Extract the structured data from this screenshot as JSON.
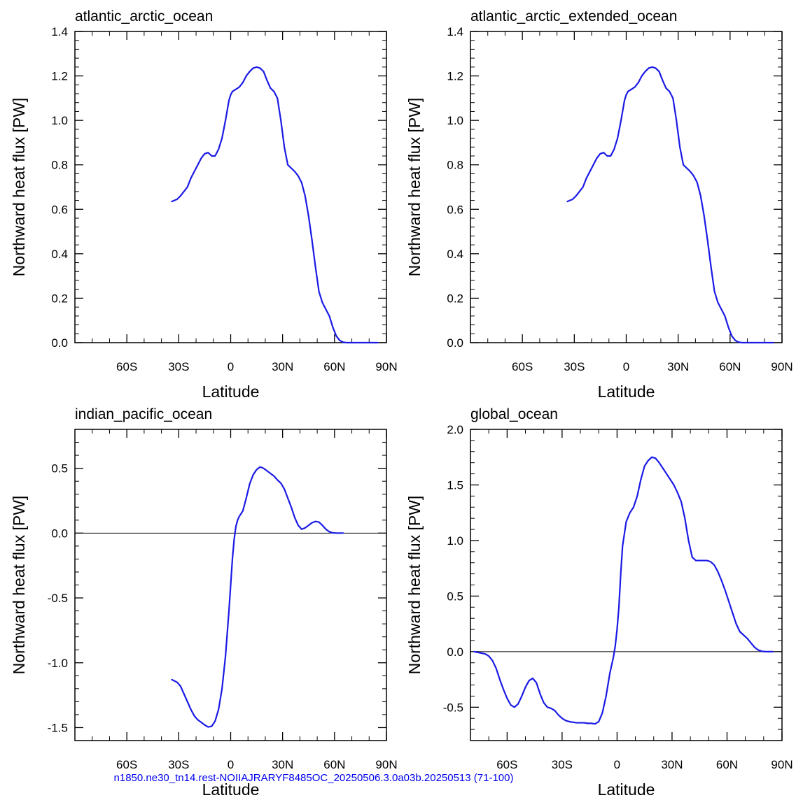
{
  "footer": {
    "text": "n1850.ne30_tn14.rest-NOIIAJRARYF8485OC_20250506.3.0a03b.20250513 (71-100)",
    "color": "#0000ee"
  },
  "line_color": "#1a1ae6",
  "chart_data": [
    {
      "type": "line",
      "title": "atlantic_arctic_ocean",
      "xlabel": "Latitude",
      "ylabel": "Northward heat flux [PW]",
      "xlim": [
        -90,
        90
      ],
      "ylim": [
        0,
        1.4
      ],
      "xticks": [
        -60,
        -30,
        0,
        30,
        60,
        90
      ],
      "xticklabels": [
        "60S",
        "30S",
        "0",
        "30N",
        "60N",
        "90N"
      ],
      "yticks": [
        0,
        0.2,
        0.4,
        0.6,
        0.8,
        1.0,
        1.2,
        1.4
      ],
      "yticklabels": [
        "0.0",
        "0.2",
        "0.4",
        "0.6",
        "0.8",
        "1.0",
        "1.2",
        "1.4"
      ],
      "zero_line": false,
      "x": [
        -34,
        -31,
        -29,
        -27,
        -25,
        -23,
        -21,
        -19,
        -17,
        -15,
        -13,
        -11,
        -9,
        -7,
        -5,
        -3,
        -1,
        0,
        1,
        3,
        5,
        7,
        9,
        11,
        13,
        15,
        17,
        19,
        21,
        23,
        25,
        27,
        29,
        31,
        33,
        35,
        37,
        39,
        41,
        43,
        45,
        47,
        49,
        51,
        53,
        55,
        57,
        59,
        61,
        63,
        65,
        67,
        69,
        71,
        73,
        75,
        77,
        79,
        81,
        83,
        85
      ],
      "y": [
        0.635,
        0.645,
        0.66,
        0.68,
        0.7,
        0.74,
        0.77,
        0.8,
        0.83,
        0.85,
        0.855,
        0.84,
        0.84,
        0.87,
        0.92,
        1.0,
        1.09,
        1.115,
        1.13,
        1.14,
        1.15,
        1.17,
        1.2,
        1.22,
        1.235,
        1.24,
        1.235,
        1.22,
        1.18,
        1.145,
        1.13,
        1.1,
        1.0,
        0.88,
        0.8,
        0.785,
        0.77,
        0.75,
        0.72,
        0.66,
        0.57,
        0.46,
        0.34,
        0.23,
        0.18,
        0.15,
        0.12,
        0.07,
        0.03,
        0.01,
        0.002,
        0.0,
        0.0,
        0.0,
        0.0,
        0.0,
        0.0,
        0.0,
        0.0,
        0.0,
        0.0
      ]
    },
    {
      "type": "line",
      "title": "atlantic_arctic_extended_ocean",
      "xlabel": "Latitude",
      "ylabel": "Northward heat flux [PW]",
      "xlim": [
        -90,
        90
      ],
      "ylim": [
        0,
        1.4
      ],
      "xticks": [
        -60,
        -30,
        0,
        30,
        60,
        90
      ],
      "xticklabels": [
        "60S",
        "30S",
        "0",
        "30N",
        "60N",
        "90N"
      ],
      "yticks": [
        0,
        0.2,
        0.4,
        0.6,
        0.8,
        1.0,
        1.2,
        1.4
      ],
      "yticklabels": [
        "0.0",
        "0.2",
        "0.4",
        "0.6",
        "0.8",
        "1.0",
        "1.2",
        "1.4"
      ],
      "zero_line": false,
      "x": [
        -34,
        -31,
        -29,
        -27,
        -25,
        -23,
        -21,
        -19,
        -17,
        -15,
        -13,
        -11,
        -9,
        -7,
        -5,
        -3,
        -1,
        0,
        1,
        3,
        5,
        7,
        9,
        11,
        13,
        15,
        17,
        19,
        21,
        23,
        25,
        27,
        29,
        31,
        33,
        35,
        37,
        39,
        41,
        43,
        45,
        47,
        49,
        51,
        53,
        55,
        57,
        59,
        61,
        63,
        65,
        67,
        69,
        71,
        73,
        75,
        77,
        79,
        81,
        83,
        85
      ],
      "y": [
        0.635,
        0.645,
        0.66,
        0.68,
        0.7,
        0.74,
        0.77,
        0.8,
        0.83,
        0.85,
        0.855,
        0.84,
        0.84,
        0.87,
        0.92,
        1.0,
        1.09,
        1.115,
        1.13,
        1.14,
        1.15,
        1.17,
        1.2,
        1.22,
        1.235,
        1.24,
        1.235,
        1.22,
        1.18,
        1.145,
        1.13,
        1.1,
        1.0,
        0.88,
        0.8,
        0.785,
        0.77,
        0.75,
        0.72,
        0.66,
        0.57,
        0.46,
        0.34,
        0.23,
        0.18,
        0.15,
        0.12,
        0.07,
        0.03,
        0.01,
        0.002,
        0.0,
        0.0,
        0.0,
        0.0,
        0.0,
        0.0,
        0.0,
        0.0,
        0.0,
        0.0
      ]
    },
    {
      "type": "line",
      "title": "indian_pacific_ocean",
      "xlabel": "Latitude",
      "ylabel": "Northward heat flux [PW]",
      "xlim": [
        -90,
        90
      ],
      "ylim": [
        -1.6,
        0.8
      ],
      "xticks": [
        -60,
        -30,
        0,
        30,
        60,
        90
      ],
      "xticklabels": [
        "60S",
        "30S",
        "0",
        "30N",
        "60N",
        "90N"
      ],
      "yticks": [
        -1.5,
        -1.0,
        -0.5,
        0.0,
        0.5
      ],
      "yticklabels": [
        "-1.5",
        "-1.0",
        "-0.5",
        "0.0",
        "0.5"
      ],
      "zero_line": true,
      "x": [
        -34,
        -31,
        -29,
        -27,
        -25,
        -23,
        -21,
        -19,
        -17,
        -15,
        -13,
        -11,
        -9,
        -7,
        -5,
        -3,
        -1,
        0,
        1,
        2,
        3,
        4,
        5,
        7,
        9,
        11,
        13,
        15,
        17,
        19,
        21,
        23,
        25,
        27,
        29,
        31,
        33,
        35,
        37,
        39,
        41,
        43,
        45,
        47,
        49,
        51,
        53,
        55,
        57,
        59,
        61,
        63,
        65
      ],
      "y": [
        -1.13,
        -1.15,
        -1.18,
        -1.24,
        -1.3,
        -1.36,
        -1.41,
        -1.44,
        -1.46,
        -1.48,
        -1.495,
        -1.49,
        -1.45,
        -1.36,
        -1.2,
        -0.95,
        -0.6,
        -0.4,
        -0.2,
        -0.05,
        0.05,
        0.1,
        0.13,
        0.17,
        0.27,
        0.38,
        0.45,
        0.49,
        0.51,
        0.5,
        0.48,
        0.46,
        0.44,
        0.41,
        0.385,
        0.34,
        0.27,
        0.2,
        0.12,
        0.06,
        0.03,
        0.04,
        0.06,
        0.08,
        0.09,
        0.085,
        0.06,
        0.03,
        0.01,
        0.002,
        0.0,
        0.0,
        0.0
      ]
    },
    {
      "type": "line",
      "title": "global_ocean",
      "xlabel": "Latitude",
      "ylabel": "Northward heat flux [PW]",
      "xlim": [
        -80,
        90
      ],
      "ylim": [
        -0.8,
        2.0
      ],
      "xticks": [
        -60,
        -30,
        0,
        30,
        60,
        90
      ],
      "xticklabels": [
        "60S",
        "30S",
        "0",
        "30N",
        "60N",
        "90N"
      ],
      "yticks": [
        -0.5,
        0.0,
        0.5,
        1.0,
        1.5,
        2.0
      ],
      "yticklabels": [
        "-0.5",
        "0.0",
        "0.5",
        "1.0",
        "1.5",
        "2.0"
      ],
      "zero_line": true,
      "x": [
        -78,
        -75,
        -72,
        -70,
        -68,
        -66,
        -64,
        -62,
        -60,
        -58,
        -56,
        -54,
        -52,
        -50,
        -48,
        -46,
        -44,
        -42,
        -40,
        -38,
        -36,
        -34,
        -32,
        -30,
        -28,
        -26,
        -24,
        -22,
        -20,
        -18,
        -16,
        -14,
        -12,
        -10,
        -8,
        -6,
        -4,
        -2,
        -1,
        0,
        1,
        2,
        3,
        5,
        7,
        9,
        11,
        13,
        15,
        17,
        19,
        21,
        23,
        25,
        27,
        29,
        31,
        33,
        35,
        37,
        39,
        41,
        43,
        45,
        47,
        49,
        51,
        53,
        55,
        57,
        59,
        61,
        63,
        65,
        67,
        69,
        71,
        73,
        75,
        77,
        79,
        81,
        83,
        85
      ],
      "y": [
        0.0,
        -0.01,
        -0.02,
        -0.04,
        -0.08,
        -0.15,
        -0.25,
        -0.34,
        -0.42,
        -0.48,
        -0.5,
        -0.47,
        -0.4,
        -0.32,
        -0.26,
        -0.24,
        -0.28,
        -0.38,
        -0.46,
        -0.5,
        -0.51,
        -0.53,
        -0.57,
        -0.6,
        -0.62,
        -0.63,
        -0.635,
        -0.64,
        -0.64,
        -0.64,
        -0.645,
        -0.645,
        -0.65,
        -0.63,
        -0.55,
        -0.4,
        -0.2,
        -0.05,
        0.05,
        0.2,
        0.4,
        0.7,
        0.95,
        1.17,
        1.25,
        1.3,
        1.4,
        1.55,
        1.67,
        1.72,
        1.75,
        1.74,
        1.7,
        1.65,
        1.6,
        1.55,
        1.5,
        1.43,
        1.35,
        1.2,
        1.0,
        0.85,
        0.82,
        0.82,
        0.82,
        0.82,
        0.81,
        0.78,
        0.72,
        0.64,
        0.55,
        0.45,
        0.35,
        0.25,
        0.18,
        0.15,
        0.12,
        0.08,
        0.04,
        0.015,
        0.003,
        0.0,
        0.0,
        0.0
      ]
    }
  ]
}
